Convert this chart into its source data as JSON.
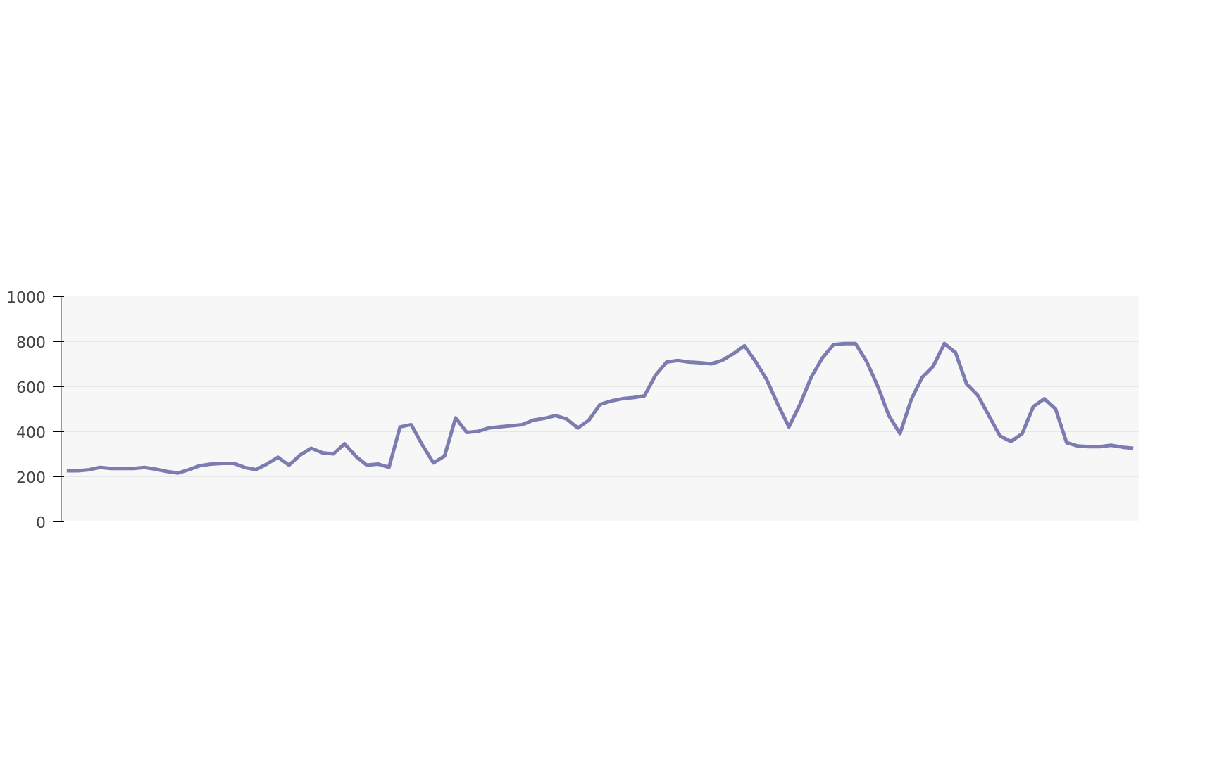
{
  "chart_data": {
    "type": "line",
    "categories": [
      null,
      null,
      null,
      null,
      null,
      null,
      null,
      null,
      null,
      null,
      null,
      null,
      null,
      null,
      null,
      null,
      null,
      null,
      null,
      null,
      null,
      null,
      null,
      null,
      null,
      null,
      null,
      null,
      null,
      null,
      null,
      null,
      null,
      null,
      null,
      null,
      null,
      null,
      null,
      null,
      null,
      null,
      null,
      null,
      null,
      null,
      null,
      null,
      null,
      null,
      null,
      null,
      null,
      null,
      null,
      null,
      null,
      null,
      null,
      null,
      null,
      null,
      null,
      null,
      null,
      null,
      null,
      null,
      null,
      null,
      null,
      null,
      null,
      null,
      null,
      null,
      null,
      null,
      null,
      null,
      null,
      null,
      null,
      null,
      null,
      null,
      null,
      null,
      null,
      null,
      null,
      null,
      null,
      null,
      null,
      null,
      null
    ],
    "series": [
      {
        "color": "#7c7cb0",
        "values": [
          225,
          225,
          230,
          240,
          235,
          235,
          235,
          240,
          232,
          222,
          215,
          230,
          248,
          255,
          258,
          258,
          240,
          230,
          255,
          285,
          250,
          295,
          325,
          305,
          300,
          345,
          290,
          250,
          255,
          240,
          420,
          430,
          340,
          260,
          290,
          460,
          395,
          400,
          415,
          420,
          425,
          430,
          450,
          458,
          470,
          455,
          415,
          450,
          520,
          535,
          545,
          550,
          558,
          650,
          708,
          715,
          708,
          705,
          700,
          715,
          745,
          780,
          710,
          630,
          520,
          420,
          520,
          640,
          725,
          785,
          790,
          790,
          710,
          600,
          470,
          390,
          540,
          640,
          690,
          790,
          750,
          610,
          560,
          470,
          380,
          355,
          390,
          510,
          545,
          500,
          350,
          335,
          332,
          332,
          338,
          330,
          325
        ]
      }
    ],
    "ylim": [
      0,
      1000
    ],
    "yticks": [
      0,
      200,
      400,
      600,
      800,
      1000
    ],
    "grid": "y",
    "tick_labels": "y"
  }
}
